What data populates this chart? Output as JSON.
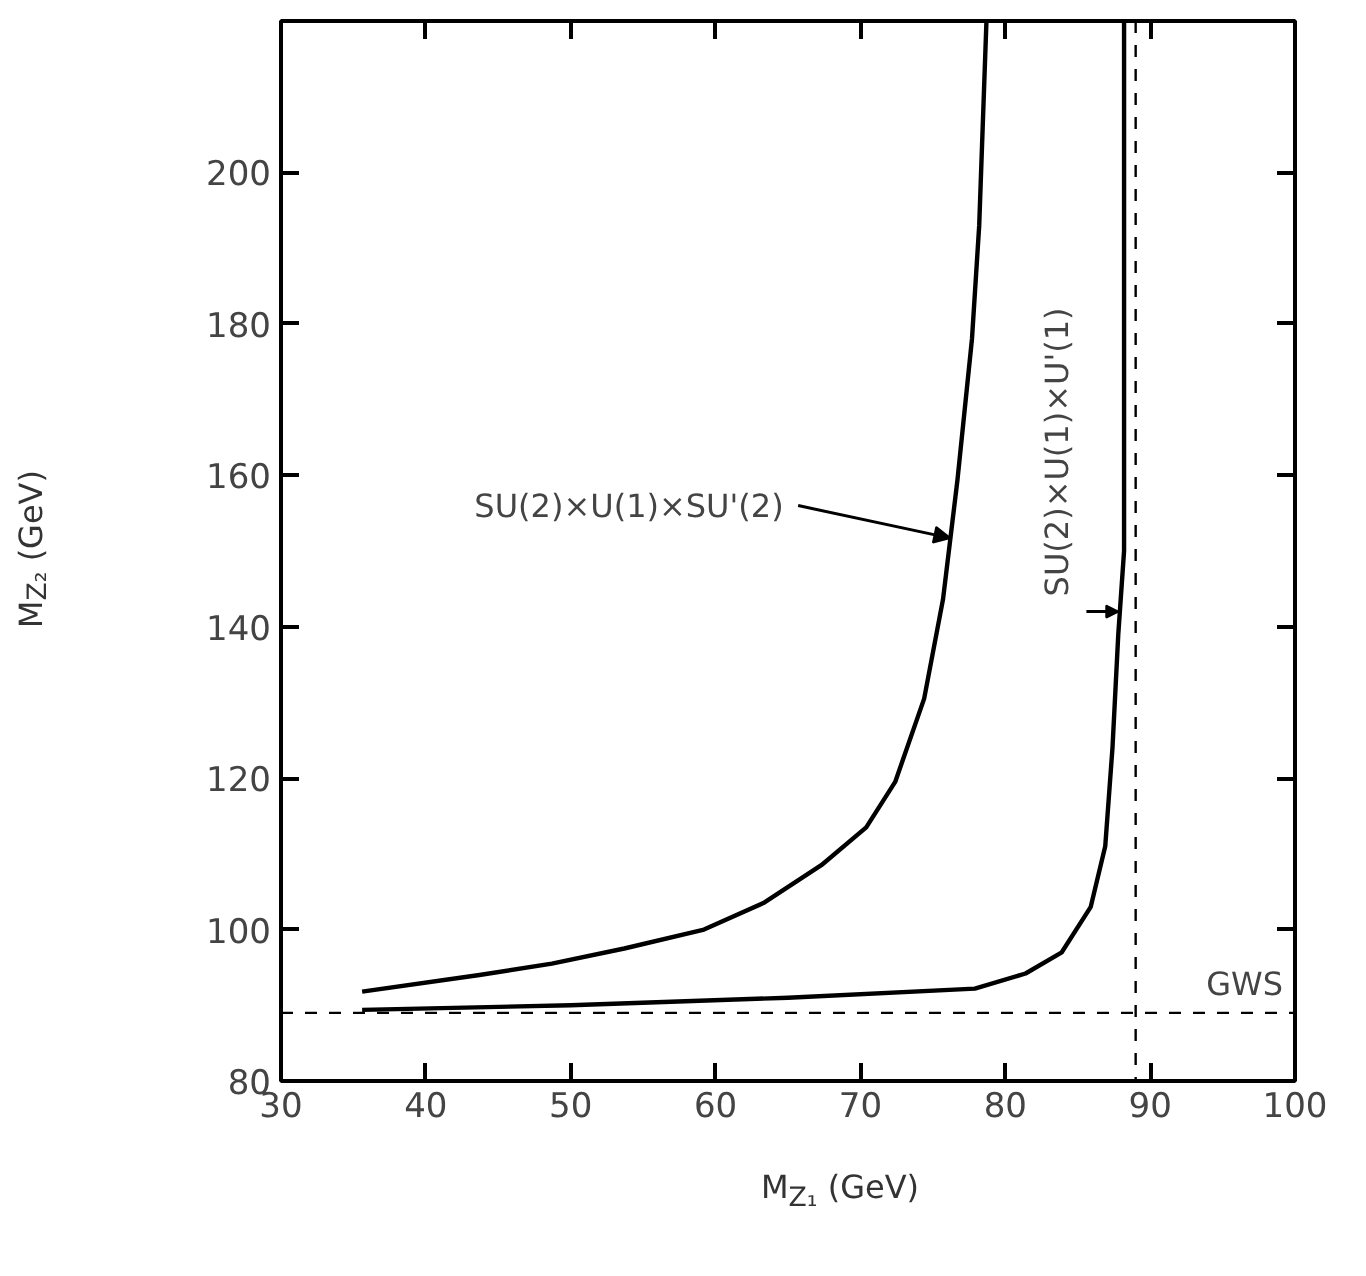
{
  "chart_data": {
    "type": "line",
    "xlabel": "M$_{Z₁}$ (GeV)",
    "ylabel": "M$_{Z₂}$ (GeV)",
    "xlim": [
      30,
      100
    ],
    "ylim": [
      80,
      220
    ],
    "xticks": [
      30,
      40,
      50,
      60,
      70,
      80,
      90,
      100
    ],
    "yticks": [
      80,
      100,
      120,
      140,
      160,
      180,
      200
    ],
    "grid": false,
    "marker": "none",
    "line_style": "solid",
    "series": [
      {
        "color": "#000000",
        "x": [
          35.6,
          43.7,
          48.7,
          53.7,
          59.2,
          63.3,
          67.3,
          70.4,
          72.4,
          74.4,
          75.7,
          76.7,
          77.7,
          78.2,
          78.7
        ],
        "values": [
          91.8,
          94,
          95.5,
          97.5,
          100,
          103.5,
          108.5,
          113.5,
          119.5,
          130.5,
          143.6,
          159.4,
          178,
          193,
          220
        ]
      },
      {
        "color": "#000000",
        "x": [
          35.6,
          50,
          65,
          77.9,
          81.4,
          83.9,
          85.9,
          86.9,
          87.4,
          87.8,
          88.2,
          88.2
        ],
        "values": [
          89.4,
          90,
          91,
          92.2,
          94.2,
          97,
          103,
          111,
          124,
          139,
          150,
          220
        ]
      }
    ],
    "ref_lines": [
      {
        "axis": "x",
        "value": 89,
        "line_style": "dashed",
        "color": "#000000"
      },
      {
        "axis": "y",
        "value": 89,
        "label": "GWS",
        "line_style": "dashed",
        "color": "#000000"
      }
    ],
    "annotations": [
      {
        "text": "SU(2)×U(1)×SU'(2)",
        "x": 76.2,
        "y": 151.7
      },
      {
        "text": "SU(2)×U(1)×U'(1)",
        "x": 87.8,
        "y": 142
      }
    ]
  }
}
